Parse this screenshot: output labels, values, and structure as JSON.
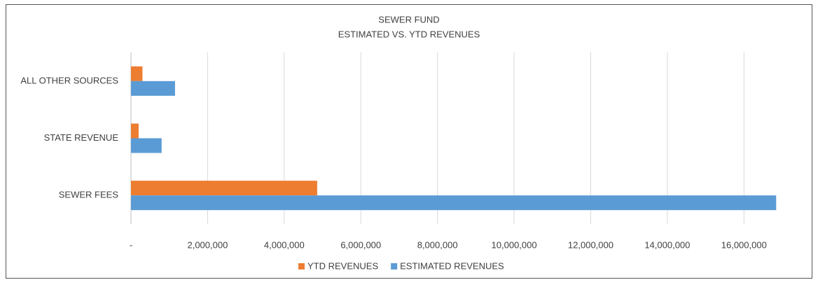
{
  "chart_data": {
    "type": "hbar",
    "title": "SEWER FUND",
    "subtitle": "ESTIMATED VS. YTD REVENUES",
    "categories": [
      "SEWER FEES",
      "STATE REVENUE",
      "ALL OTHER SOURCES"
    ],
    "series": [
      {
        "name": "YTD REVENUES",
        "color": "#ed7d31",
        "values": [
          4860000,
          200000,
          300000
        ]
      },
      {
        "name": "ESTIMATED REVENUES",
        "color": "#5b9bd5",
        "values": [
          16840000,
          800000,
          1150000
        ]
      }
    ],
    "xlim": [
      0,
      17000000
    ],
    "xticks": [
      {
        "value": 0,
        "label": "-"
      },
      {
        "value": 2000000,
        "label": "2,000,000"
      },
      {
        "value": 4000000,
        "label": "4,000,000"
      },
      {
        "value": 6000000,
        "label": "6,000,000"
      },
      {
        "value": 8000000,
        "label": "8,000,000"
      },
      {
        "value": 10000000,
        "label": "10,000,000"
      },
      {
        "value": 12000000,
        "label": "12,000,000"
      },
      {
        "value": 14000000,
        "label": "14,000,000"
      },
      {
        "value": 16000000,
        "label": "16,000,000"
      }
    ],
    "grid": true,
    "legend": "bottom"
  }
}
